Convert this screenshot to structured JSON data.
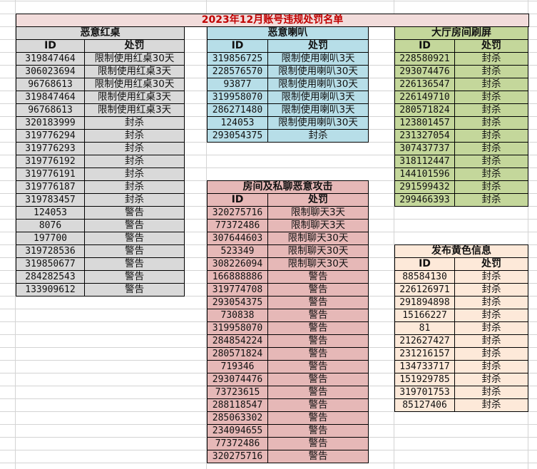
{
  "title": "2023年12月账号违规处罚名单",
  "tables": [
    {
      "key": "red-table",
      "caption": "恶意红桌",
      "color": "#d9d9d9",
      "headers": [
        "ID",
        "处罚"
      ],
      "rows": [
        [
          "319847464",
          "限制使用红桌30天"
        ],
        [
          "306023694",
          "限制使用红桌3天"
        ],
        [
          "96768613",
          "限制使用红桌30天"
        ],
        [
          "319847464",
          "限制使用红桌3天"
        ],
        [
          "96768613",
          "限制使用红桌3天"
        ],
        [
          "320183999",
          "封杀"
        ],
        [
          "319776294",
          "封杀"
        ],
        [
          "319776293",
          "封杀"
        ],
        [
          "319776192",
          "封杀"
        ],
        [
          "319776191",
          "封杀"
        ],
        [
          "319776187",
          "封杀"
        ],
        [
          "319783457",
          "封杀"
        ],
        [
          "124053",
          "警告"
        ],
        [
          "8076",
          "警告"
        ],
        [
          "197700",
          "警告"
        ],
        [
          "319728536",
          "警告"
        ],
        [
          "319850677",
          "警告"
        ],
        [
          "284282543",
          "警告"
        ],
        [
          "133909612",
          "警告"
        ]
      ]
    },
    {
      "key": "horn-table",
      "caption": "恶意喇叭",
      "color": "#b7dee8",
      "headers": [
        "ID",
        "处罚"
      ],
      "rows": [
        [
          "319856725",
          "限制使用喇叭3天"
        ],
        [
          "228576570",
          "限制使用喇叭30天"
        ],
        [
          "93877",
          "限制使用喇叭30天"
        ],
        [
          "319958070",
          "限制使用喇叭3天"
        ],
        [
          "286271480",
          "限制使用喇叭3天"
        ],
        [
          "124053",
          "限制使用喇叭30天"
        ],
        [
          "293054375",
          "封杀"
        ]
      ]
    },
    {
      "key": "attack-table",
      "caption": "房间及私聊恶意攻击",
      "color": "#e6b8b7",
      "headers": [
        "ID",
        "处罚"
      ],
      "rows": [
        [
          "320275716",
          "限制聊天3天"
        ],
        [
          "77372486",
          "限制聊天3天"
        ],
        [
          "307644603",
          "限制聊天30天"
        ],
        [
          "523349",
          "限制聊天30天"
        ],
        [
          "308226094",
          "限制聊天30天"
        ],
        [
          "166888886",
          "警告"
        ],
        [
          "319774708",
          "警告"
        ],
        [
          "293054375",
          "警告"
        ],
        [
          "730838",
          "警告"
        ],
        [
          "319958070",
          "警告"
        ],
        [
          "284854224",
          "警告"
        ],
        [
          "280571824",
          "警告"
        ],
        [
          "719346",
          "警告"
        ],
        [
          "293074476",
          "警告"
        ],
        [
          "73723615",
          "警告"
        ],
        [
          "288118547",
          "警告"
        ],
        [
          "285063302",
          "警告"
        ],
        [
          "234094655",
          "警告"
        ],
        [
          "77372486",
          "警告"
        ],
        [
          "320275716",
          "警告"
        ]
      ]
    },
    {
      "key": "spam-table",
      "caption": "大厅房间刷屏",
      "color": "#c4d79b",
      "headers": [
        "ID",
        "处罚"
      ],
      "rows": [
        [
          "228580921",
          "封杀"
        ],
        [
          "293074476",
          "封杀"
        ],
        [
          "226136547",
          "封杀"
        ],
        [
          "226149710",
          "封杀"
        ],
        [
          "280571824",
          "封杀"
        ],
        [
          "123801457",
          "封杀"
        ],
        [
          "231327054",
          "封杀"
        ],
        [
          "307437737",
          "封杀"
        ],
        [
          "318112447",
          "封杀"
        ],
        [
          "144101596",
          "封杀"
        ],
        [
          "291599432",
          "封杀"
        ],
        [
          "299466393",
          "封杀"
        ]
      ]
    },
    {
      "key": "porn-table",
      "caption": "发布黄色信息",
      "color": "#fde9d9",
      "headers": [
        "ID",
        "处罚"
      ],
      "rows": [
        [
          "88584130",
          "封杀"
        ],
        [
          "226126971",
          "封杀"
        ],
        [
          "291894898",
          "封杀"
        ],
        [
          "15166227",
          "封杀"
        ],
        [
          "81",
          "封杀"
        ],
        [
          "212627427",
          "封杀"
        ],
        [
          "231216157",
          "封杀"
        ],
        [
          "134733717",
          "封杀"
        ],
        [
          "151929785",
          "封杀"
        ],
        [
          "319701753",
          "封杀"
        ],
        [
          "85127406",
          "封杀"
        ]
      ]
    }
  ]
}
